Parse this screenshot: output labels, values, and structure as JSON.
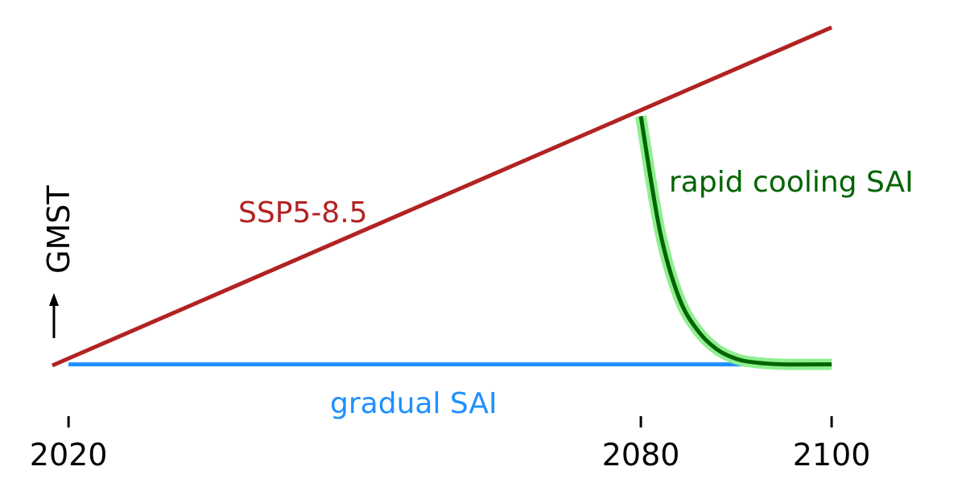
{
  "chart_data": {
    "type": "line",
    "xlim": [
      2018.3,
      2100.5
    ],
    "ylim": [
      0,
      1
    ],
    "grid": false,
    "ylabel": "GMST",
    "xticks": [
      2020,
      2080,
      2100
    ],
    "series": [
      {
        "name": "SSP5-8.5",
        "color": "#b22222",
        "x": [
          2015,
          2100
        ],
        "y": [
          0.05,
          1.0
        ]
      },
      {
        "name": "gradual SAI",
        "color": "#1e90ff",
        "x": [
          2020,
          2100
        ],
        "y": [
          0.09,
          0.09
        ]
      },
      {
        "name": "rapid cooling SAI",
        "color": "#006400",
        "highlight": "#90ee90",
        "x": [
          2080,
          2082,
          2084,
          2086,
          2088,
          2090,
          2092,
          2095,
          2100
        ],
        "y": [
          0.76,
          0.45,
          0.27,
          0.18,
          0.13,
          0.105,
          0.095,
          0.09,
          0.09
        ]
      }
    ],
    "annotations": [
      {
        "text": "SSP5-8.5",
        "color": "#b22222"
      },
      {
        "text": "gradual SAI",
        "color": "#1e90ff"
      },
      {
        "text": "rapid cooling SAI",
        "color": "#006400"
      }
    ]
  }
}
